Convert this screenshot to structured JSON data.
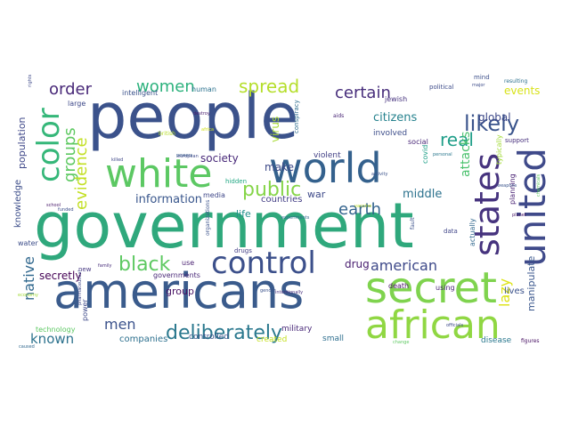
{
  "words": [
    {
      "text": "people",
      "color": "#3b528b"
    },
    {
      "text": "government",
      "color": "#2fa87c"
    },
    {
      "text": "americans",
      "color": "#3a5b8c"
    },
    {
      "text": "secret",
      "color": "#7fd34e"
    },
    {
      "text": "world",
      "color": "#34618d"
    },
    {
      "text": "white",
      "color": "#5cc863"
    },
    {
      "text": "united",
      "color": "#3f4a8a"
    },
    {
      "text": "states",
      "color": "#46337e"
    },
    {
      "text": "african",
      "color": "#90d743"
    },
    {
      "text": "control",
      "color": "#3c508b"
    },
    {
      "text": "color",
      "color": "#35b779"
    },
    {
      "text": "deliberately",
      "color": "#2a788e"
    },
    {
      "text": "black",
      "color": "#5ec962"
    },
    {
      "text": "likely",
      "color": "#3a548c"
    },
    {
      "text": "public",
      "color": "#86d549"
    },
    {
      "text": "spread",
      "color": "#b5de2b"
    },
    {
      "text": "women",
      "color": "#2db27d"
    },
    {
      "text": "order",
      "color": "#482878"
    },
    {
      "text": "certain",
      "color": "#472d7b"
    },
    {
      "text": "groups",
      "color": "#5ec962"
    },
    {
      "text": "evidence",
      "color": "#c2df23"
    },
    {
      "text": "real",
      "color": "#1f9e89"
    },
    {
      "text": "earth",
      "color": "#33638d"
    },
    {
      "text": "american",
      "color": "#3e4989"
    },
    {
      "text": "native",
      "color": "#31688e"
    },
    {
      "text": "known",
      "color": "#2c728e"
    },
    {
      "text": "men",
      "color": "#3b528b"
    },
    {
      "text": "lazy",
      "color": "#dde318"
    },
    {
      "text": "citizens",
      "color": "#26828e"
    },
    {
      "text": "attacks",
      "color": "#4ac16d"
    },
    {
      "text": "middle",
      "color": "#2c728e"
    },
    {
      "text": "information",
      "color": "#39568c"
    },
    {
      "text": "make",
      "color": "#3e4a89"
    },
    {
      "text": "society",
      "color": "#482979"
    },
    {
      "text": "events",
      "color": "#d8e219"
    },
    {
      "text": "global",
      "color": "#3e4989"
    },
    {
      "text": "secretly",
      "color": "#440154"
    },
    {
      "text": "drug",
      "color": "#481d6f"
    },
    {
      "text": "virus",
      "color": "#a8db34"
    },
    {
      "text": "manipulate",
      "color": "#39568c"
    },
    {
      "text": "population",
      "color": "#3f4889"
    },
    {
      "text": "knowledge",
      "color": "#3d4e8a"
    },
    {
      "text": "life",
      "color": "#21918c"
    },
    {
      "text": "war",
      "color": "#3e4a89"
    },
    {
      "text": "countries",
      "color": "#433e85"
    },
    {
      "text": "group",
      "color": "#471063"
    },
    {
      "text": "companies",
      "color": "#2d708e"
    },
    {
      "text": "created",
      "color": "#c5e021"
    },
    {
      "text": "controlled",
      "color": "#3a538b"
    },
    {
      "text": "military",
      "color": "#482878"
    },
    {
      "text": "small",
      "color": "#2e6e8e"
    },
    {
      "text": "disease",
      "color": "#2a788e"
    },
    {
      "text": "lives",
      "color": "#3b528b"
    },
    {
      "text": "using",
      "color": "#482475"
    },
    {
      "text": "actually",
      "color": "#31688e"
    },
    {
      "text": "planning",
      "color": "#482173"
    },
    {
      "text": "typically",
      "color": "#a2da37"
    },
    {
      "text": "social",
      "color": "#482677"
    },
    {
      "text": "covid",
      "color": "#1fa088"
    },
    {
      "text": "death",
      "color": "#471365"
    },
    {
      "text": "violent",
      "color": "#424086"
    },
    {
      "text": "involved",
      "color": "#3d4d8a"
    },
    {
      "text": "human",
      "color": "#2c728e"
    },
    {
      "text": "intelligent",
      "color": "#3b528b"
    },
    {
      "text": "media",
      "color": "#3f4788"
    },
    {
      "text": "power",
      "color": "#3e4989"
    },
    {
      "text": "technology",
      "color": "#5dc863"
    },
    {
      "text": "water",
      "color": "#3d4e8a"
    },
    {
      "text": "new",
      "color": "#453781"
    },
    {
      "text": "large",
      "color": "#3e4989"
    },
    {
      "text": "governments",
      "color": "#482777"
    },
    {
      "text": "use",
      "color": "#481f70"
    },
    {
      "text": "jewish",
      "color": "#46327e"
    },
    {
      "text": "conspiracy",
      "color": "#2e6d8e"
    },
    {
      "text": "hidden",
      "color": "#22a884"
    },
    {
      "text": "support",
      "color": "#472f7d"
    },
    {
      "text": "data",
      "color": "#404588"
    },
    {
      "text": "drugs",
      "color": "#433e85"
    },
    {
      "text": "political",
      "color": "#3e4c8a"
    },
    {
      "text": "mind",
      "color": "#3c4f8a"
    },
    {
      "text": "resulting",
      "color": "#2d708e"
    },
    {
      "text": "british",
      "color": "#b8de29"
    },
    {
      "text": "organizations",
      "color": "#3b528b"
    },
    {
      "text": "aids",
      "color": "#482475"
    },
    {
      "text": "fault",
      "color": "#3b518b"
    },
    {
      "text": "killed",
      "color": "#3f4788"
    },
    {
      "text": "european",
      "color": "#3e4989"
    },
    {
      "text": "destroy",
      "color": "#481b6d"
    },
    {
      "text": "pharmaceutical",
      "color": "#3f4788"
    },
    {
      "text": "economy",
      "color": "#a2da37"
    },
    {
      "text": "school",
      "color": "#48186a"
    },
    {
      "text": "chemicals",
      "color": "#5ec962"
    },
    {
      "text": "africa",
      "color": "#d2e21b"
    },
    {
      "text": "figures",
      "color": "#471063"
    },
    {
      "text": "planet",
      "color": "#481769"
    },
    {
      "text": "officials",
      "color": "#3e4c8a"
    },
    {
      "text": "gender",
      "color": "#3b528b"
    },
    {
      "text": "experiments",
      "color": "#31688e"
    },
    {
      "text": "family",
      "color": "#472c7a"
    },
    {
      "text": "rights",
      "color": "#3e4989"
    },
    {
      "text": "vaccine",
      "color": "#c0df25"
    },
    {
      "text": "activity",
      "color": "#3b528b"
    },
    {
      "text": "personal",
      "color": "#2a788e"
    },
    {
      "text": "weapons",
      "color": "#3a548c"
    },
    {
      "text": "powers",
      "color": "#38598c"
    },
    {
      "text": "intentionally",
      "color": "#472f7d"
    },
    {
      "text": "funded",
      "color": "#3d4e8a"
    },
    {
      "text": "caused",
      "color": "#31688e"
    },
    {
      "text": "major",
      "color": "#3e4c8a"
    },
    {
      "text": "change",
      "color": "#5ec962"
    }
  ]
}
